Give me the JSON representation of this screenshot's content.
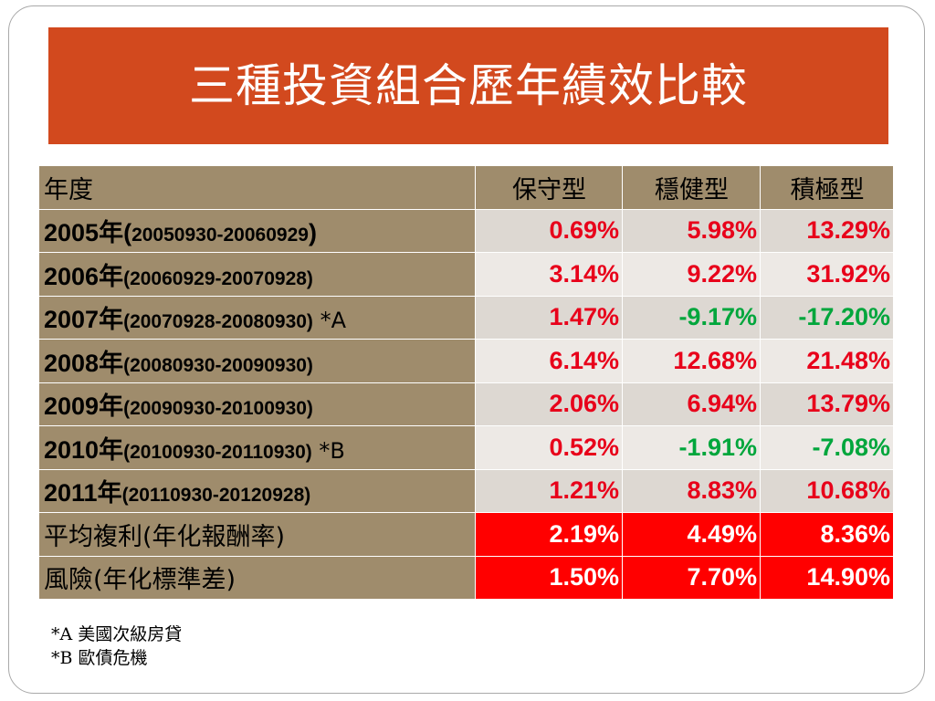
{
  "title": "三種投資組合歷年績效比較",
  "colors": {
    "title_bg": "#d2491e",
    "label_bg": "#9f8c6c",
    "positive_text": "#e8001a",
    "negative_text": "#00a63c",
    "summary_bg": "#ff0000"
  },
  "table": {
    "header": {
      "year": "年度",
      "conservative": "保守型",
      "balanced": "穩健型",
      "aggressive": "積極型"
    },
    "rows": [
      {
        "year": "2005年(",
        "range": "20050930-20060929",
        "tail": ")",
        "note": "",
        "conservative": "0.69%",
        "balanced": "5.98%",
        "aggressive": "13.29%"
      },
      {
        "year": "2006年",
        "range": "(20060929-20070928)",
        "tail": "",
        "note": "",
        "conservative": "3.14%",
        "balanced": "9.22%",
        "aggressive": "31.92%"
      },
      {
        "year": "2007年",
        "range": "(20070928-20080930)",
        "tail": "",
        "note": " *A",
        "conservative": "1.47%",
        "balanced": "-9.17%",
        "aggressive": "-17.20%"
      },
      {
        "year": "2008年",
        "range": "(20080930-20090930)",
        "tail": "",
        "note": "",
        "conservative": "6.14%",
        "balanced": "12.68%",
        "aggressive": "21.48%"
      },
      {
        "year": "2009年",
        "range": "(20090930-20100930)",
        "tail": "",
        "note": "",
        "conservative": "2.06%",
        "balanced": "6.94%",
        "aggressive": "13.79%"
      },
      {
        "year": "2010年",
        "range": "(20100930-20110930)",
        "tail": "",
        "note": " *B",
        "conservative": "0.52%",
        "balanced": "-1.91%",
        "aggressive": "-7.08%"
      },
      {
        "year": "2011年",
        "range": "(20110930-20120928)",
        "tail": "",
        "note": "",
        "conservative": "1.21%",
        "balanced": "8.83%",
        "aggressive": "10.68%"
      }
    ],
    "summary": [
      {
        "label": "平均複利(年化報酬率)",
        "conservative": "2.19%",
        "balanced": "4.49%",
        "aggressive": "8.36%"
      },
      {
        "label": "風險(年化標準差)",
        "conservative": "1.50%",
        "balanced": "7.70%",
        "aggressive": "14.90%"
      }
    ]
  },
  "notes": [
    "*A 美國次級房貸",
    "*B 歐債危機"
  ]
}
